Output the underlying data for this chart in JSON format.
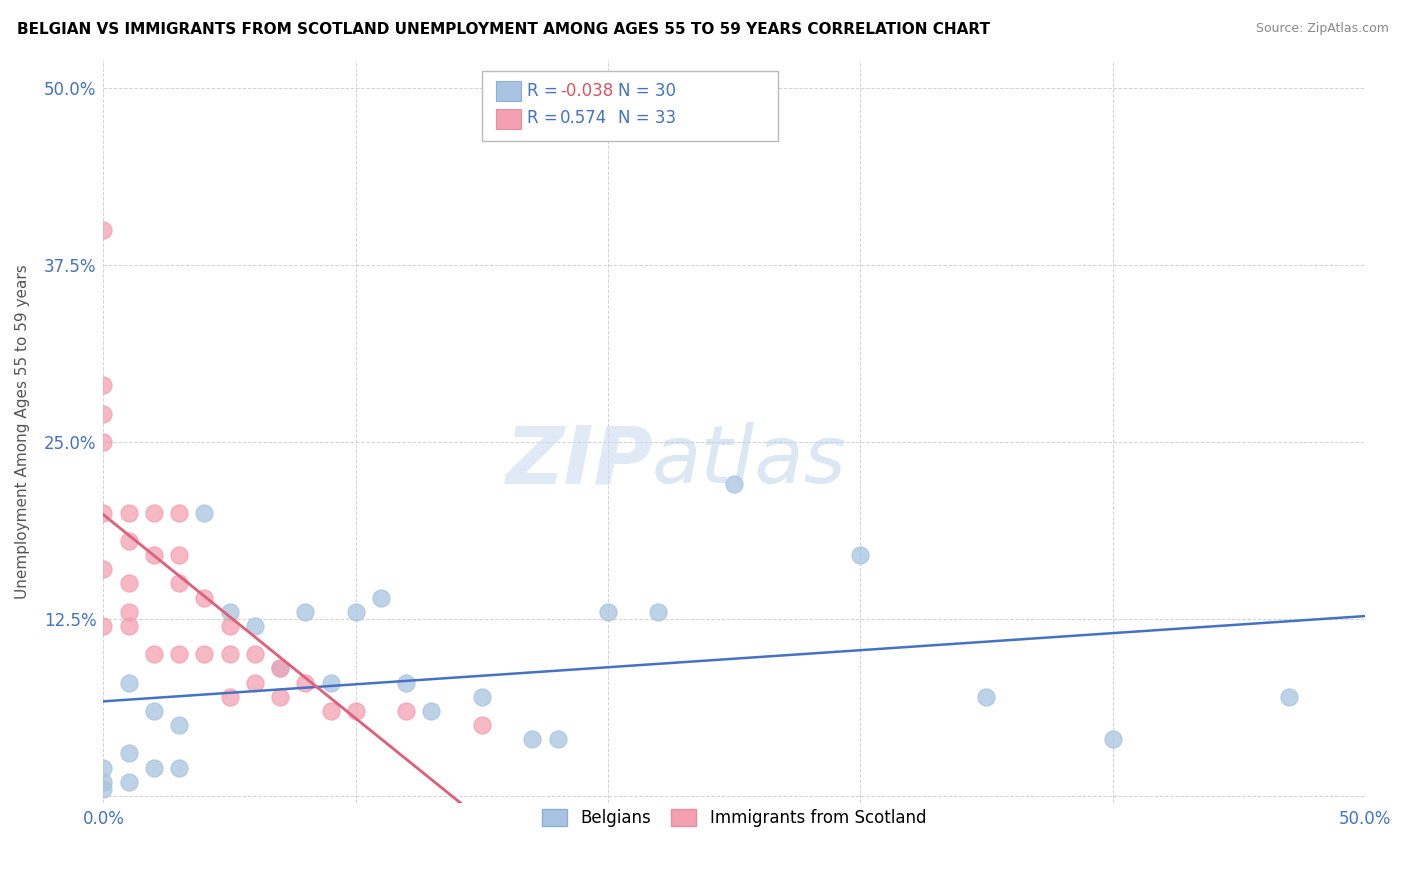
{
  "title": "BELGIAN VS IMMIGRANTS FROM SCOTLAND UNEMPLOYMENT AMONG AGES 55 TO 59 YEARS CORRELATION CHART",
  "source": "Source: ZipAtlas.com",
  "ylabel": "Unemployment Among Ages 55 to 59 years",
  "xlim": [
    0.0,
    0.5
  ],
  "ylim": [
    -0.02,
    0.52
  ],
  "xticks": [
    0.0,
    0.1,
    0.2,
    0.3,
    0.4,
    0.5
  ],
  "yticks": [
    0.0,
    0.125,
    0.25,
    0.375,
    0.5
  ],
  "xticklabels": [
    "0.0%",
    "",
    "",
    "",
    "",
    "50.0%"
  ],
  "yticklabels": [
    "",
    "12.5%",
    "25.0%",
    "37.5%",
    "50.0%"
  ],
  "belgians_R": -0.038,
  "belgians_N": 30,
  "scotland_R": 0.574,
  "scotland_N": 33,
  "belgian_color": "#a8c4e0",
  "scotland_color": "#f4a0b0",
  "belgian_line_color": "#4472c4",
  "scotland_line_color": "#e0607a",
  "belgians_x": [
    0.0,
    0.0,
    0.0,
    0.01,
    0.01,
    0.01,
    0.02,
    0.02,
    0.03,
    0.03,
    0.04,
    0.05,
    0.06,
    0.07,
    0.08,
    0.09,
    0.1,
    0.11,
    0.12,
    0.13,
    0.15,
    0.17,
    0.18,
    0.2,
    0.22,
    0.25,
    0.3,
    0.35,
    0.4,
    0.47
  ],
  "belgians_y": [
    0.02,
    0.01,
    0.005,
    0.08,
    0.03,
    0.01,
    0.06,
    0.02,
    0.05,
    0.02,
    0.2,
    0.13,
    0.12,
    0.09,
    0.13,
    0.08,
    0.13,
    0.14,
    0.08,
    0.06,
    0.07,
    0.04,
    0.04,
    0.13,
    0.13,
    0.22,
    0.17,
    0.07,
    0.04,
    0.07
  ],
  "scotland_x": [
    0.0,
    0.0,
    0.0,
    0.0,
    0.0,
    0.0,
    0.0,
    0.01,
    0.01,
    0.01,
    0.01,
    0.01,
    0.02,
    0.02,
    0.02,
    0.03,
    0.03,
    0.03,
    0.03,
    0.04,
    0.04,
    0.05,
    0.05,
    0.05,
    0.06,
    0.06,
    0.07,
    0.07,
    0.08,
    0.09,
    0.1,
    0.12,
    0.15
  ],
  "scotland_y": [
    0.4,
    0.29,
    0.27,
    0.25,
    0.2,
    0.16,
    0.12,
    0.2,
    0.18,
    0.15,
    0.13,
    0.12,
    0.2,
    0.17,
    0.1,
    0.2,
    0.17,
    0.15,
    0.1,
    0.14,
    0.1,
    0.12,
    0.1,
    0.07,
    0.1,
    0.08,
    0.09,
    0.07,
    0.08,
    0.06,
    0.06,
    0.06,
    0.05
  ]
}
